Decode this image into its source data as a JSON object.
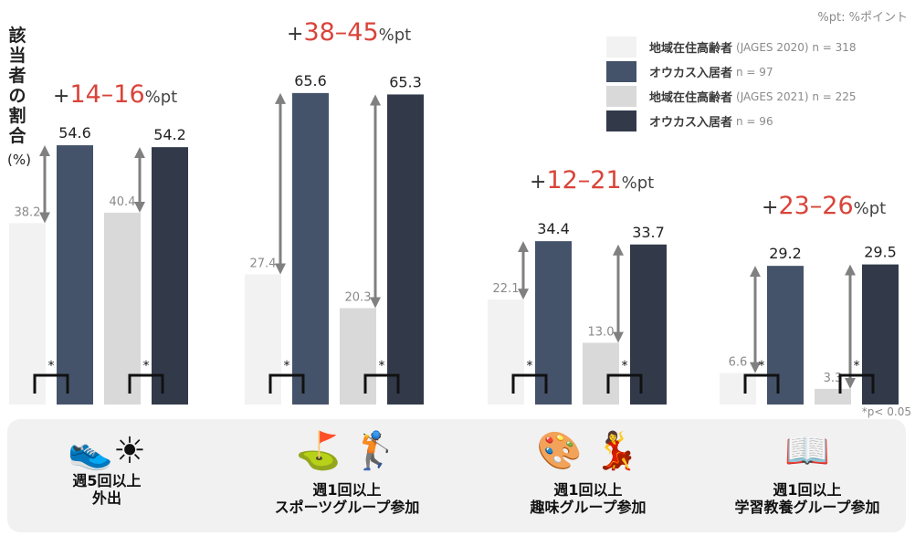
{
  "chart_data": {
    "type": "bar",
    "ylabel": "該当者の割合",
    "yunit": "(%)",
    "note_unit": "%pt: %ポイント",
    "note_significance": "*p< 0.05",
    "legend": [
      {
        "label": "地域在住高齢者",
        "detail": "(JAGES 2020) n = 318",
        "color": "#f2f2f2"
      },
      {
        "label": "オウカス入居者",
        "detail": "n = 97",
        "color": "#45536a"
      },
      {
        "label": "地域在住高齢者",
        "detail": "(JAGES 2021) n = 225",
        "color": "#d9d9d9"
      },
      {
        "label": "オウカス入居者",
        "detail": "n = 96",
        "color": "#323a4a"
      }
    ],
    "series_colors": [
      "#f2f2f2",
      "#45536a",
      "#d9d9d9",
      "#323a4a"
    ],
    "groups": [
      {
        "values": [
          38.2,
          54.6,
          40.4,
          54.2
        ],
        "labels": [
          "38.2",
          "54.6",
          "40.4",
          "54.2"
        ],
        "diff_plus": "+",
        "diff_range": "14–16",
        "diff_unit": "%pt",
        "category_line1": "週5回以上",
        "category_line2": "外出",
        "icon": "walking-shoe-sun-icon"
      },
      {
        "values": [
          27.4,
          65.6,
          20.3,
          65.3
        ],
        "labels": [
          "27.4",
          "65.6",
          "20.3",
          "65.3"
        ],
        "diff_plus": "+",
        "diff_range": "38–45",
        "diff_unit": "%pt",
        "category_line1": "週1回以上",
        "category_line2": "スポーツグループ参加",
        "icon": "golf-and-sport-icon"
      },
      {
        "values": [
          22.1,
          34.4,
          13.0,
          33.7
        ],
        "labels": [
          "22.1",
          "34.4",
          "13.0",
          "33.7"
        ],
        "diff_plus": "+",
        "diff_range": "12–21",
        "diff_unit": "%pt",
        "category_line1": "週1回以上",
        "category_line2": "趣味グループ参加",
        "icon": "painting-and-dance-icon"
      },
      {
        "values": [
          6.6,
          29.2,
          3.3,
          29.5
        ],
        "labels": [
          "6.6",
          "29.2",
          "3.3",
          "29.5"
        ],
        "diff_plus": "+",
        "diff_range": "23–26",
        "diff_unit": "%pt",
        "category_line1": "週1回以上",
        "category_line2": "学習教養グループ参加",
        "icon": "reading-person-icon"
      }
    ],
    "significance_mark": "*"
  }
}
